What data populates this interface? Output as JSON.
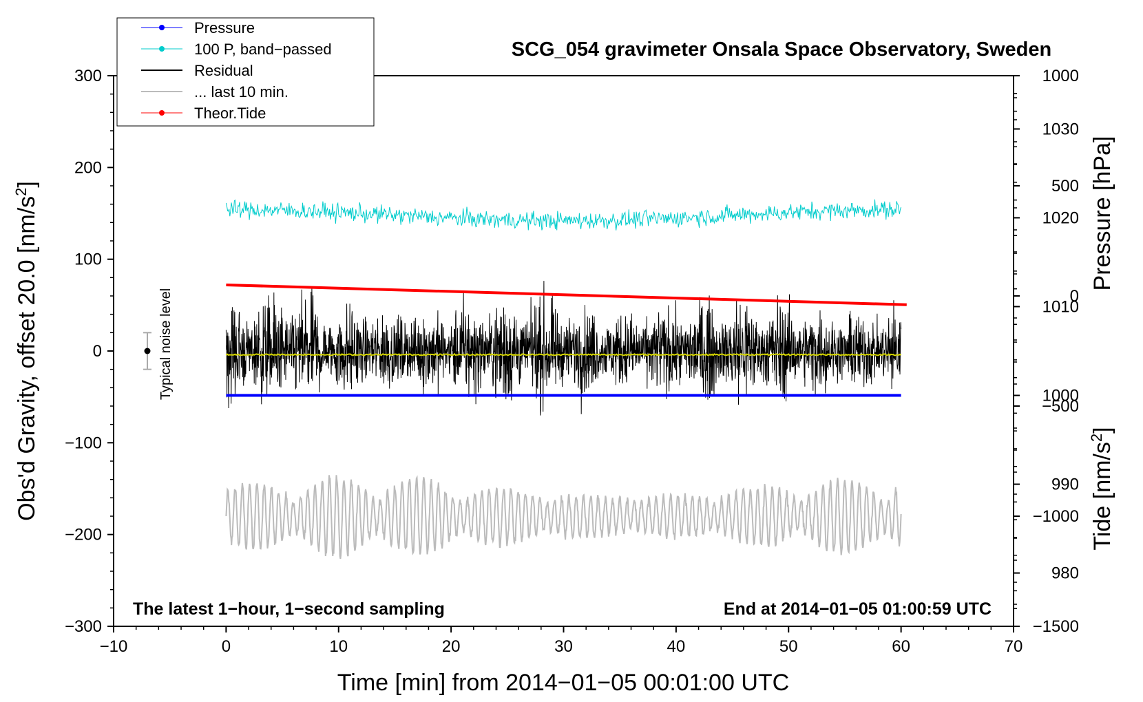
{
  "chart_data": {
    "type": "line",
    "title": "SCG_054 gravimeter Onsala Space Observatory, Sweden",
    "xlabel": "Time [min] from 2014−01−05 00:01:00 UTC",
    "ylabel_left": "Obs'd Gravity, offset 20.0 [nm/s²]",
    "ylabel_left_main": "Obs'd Gravity, offset 20.0 [nm/s",
    "ylabel_left_sup": "2",
    "ylabel_left_end": "]",
    "ylabel_right_pressure": "Pressure [hPa]",
    "ylabel_right_tide": "Tide [nm/s²]",
    "ylabel_right_tide_main": "Tide [nm/s",
    "ylabel_right_tide_sup": "2",
    "ylabel_right_tide_end": "]",
    "xlim": [
      -10,
      70
    ],
    "ylim_left": [
      -300,
      300
    ],
    "x_ticks": [
      -10,
      0,
      10,
      20,
      30,
      40,
      50,
      60,
      70
    ],
    "x_tick_labels": [
      "−10",
      "0",
      "10",
      "20",
      "30",
      "40",
      "50",
      "60",
      "70"
    ],
    "y_left_ticks": [
      -300,
      -200,
      -100,
      0,
      100,
      200,
      300
    ],
    "y_left_tick_labels": [
      "−300",
      "−200",
      "−100",
      "0",
      "100",
      "200",
      "300"
    ],
    "pressure_axis": {
      "range_hpa": [
        974,
        1036
      ],
      "ticks": [
        980,
        990,
        1000,
        1010,
        1020,
        1030
      ],
      "tick_labels": [
        "980",
        "990",
        "1000",
        "1010",
        "1020",
        "1030"
      ]
    },
    "tide_axis": {
      "range_nms2": [
        -1500,
        1000
      ],
      "ticks": [
        -1500,
        -1000,
        -500,
        0,
        500,
        1000
      ],
      "tick_labels": [
        "−1500",
        "−1000",
        "−500",
        "0",
        "500",
        "1000"
      ]
    },
    "series": [
      {
        "name": "Pressure",
        "color": "#0000ff",
        "x_range": [
          0,
          60
        ],
        "pressure_hpa_start": 1000.0,
        "pressure_hpa_end": 1000.0,
        "axis": "pressure"
      },
      {
        "name": "100 P, band−passed",
        "color": "#00cccc",
        "x_range": [
          0,
          60
        ],
        "center_left_units": 148,
        "noise_amplitude": 8
      },
      {
        "name": "Residual",
        "color": "#000000",
        "x_range": [
          0,
          60
        ],
        "center_left_units": 0,
        "typical_amplitude": 40,
        "max_amplitude": 100
      },
      {
        "name": "... last 10 min.",
        "color": "#bbbbbb",
        "x_range": [
          0,
          60
        ],
        "center_left_units": -180,
        "typical_amplitude": 40,
        "max_amplitude": 90
      },
      {
        "name": "Theor.Tide",
        "color": "#ff0000",
        "x_range": [
          0,
          60.5
        ],
        "tide_start_nms2": 50,
        "tide_end_nms2": -40,
        "axis": "tide"
      },
      {
        "name": "smoothed residual",
        "color": "#d4d400",
        "x_range": [
          0,
          60
        ],
        "center_left_units": -4,
        "in_legend": false
      }
    ],
    "legend_order": [
      "Pressure",
      "100 P, band−passed",
      "Residual",
      "... last 10 min.",
      "Theor.Tide"
    ],
    "legend_placement": "top-left",
    "noise_bar": {
      "label": "Typical noise level",
      "x": -7,
      "center": 0,
      "half_range": 20
    },
    "annotations": {
      "bottom_left": "The latest 1−hour, 1−second sampling",
      "bottom_right": "End at 2014−01−05 01:00:59 UTC"
    }
  }
}
